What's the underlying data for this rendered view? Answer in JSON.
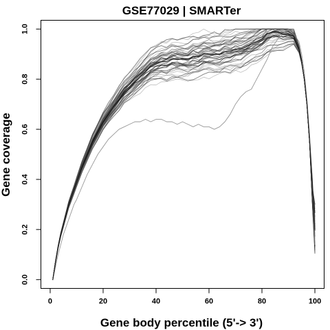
{
  "chart_data": {
    "type": "line",
    "title": "GSE77029 | SMARTer",
    "xlabel": "Gene body percentile (5'-> 3')",
    "ylabel": "Gene coverage",
    "xlim": [
      -3.5,
      103.5
    ],
    "ylim": [
      -0.035,
      1.035
    ],
    "xticks": [
      0,
      20,
      40,
      60,
      80,
      100
    ],
    "yticks": [
      0.0,
      0.2,
      0.4,
      0.6,
      0.8,
      1.0
    ],
    "xtick_labels": [
      "0",
      "20",
      "40",
      "60",
      "80",
      "100"
    ],
    "ytick_labels": [
      "0.0",
      "0.2",
      "0.4",
      "0.6",
      "0.8",
      "1.0"
    ],
    "grid": false,
    "legend": "none",
    "series_count": 50,
    "x": [
      1,
      2,
      3,
      4,
      5,
      6,
      7,
      8,
      9,
      10,
      12,
      14,
      16,
      18,
      20,
      22,
      24,
      26,
      28,
      30,
      32,
      34,
      36,
      38,
      40,
      42,
      44,
      46,
      48,
      50,
      52,
      54,
      56,
      58,
      60,
      62,
      64,
      66,
      68,
      70,
      72,
      74,
      76,
      78,
      80,
      82,
      84,
      86,
      88,
      90,
      92,
      94,
      95,
      96,
      97,
      98,
      99,
      100
    ],
    "representative_series": {
      "median": [
        0.0,
        0.07,
        0.13,
        0.18,
        0.22,
        0.26,
        0.3,
        0.33,
        0.36,
        0.39,
        0.45,
        0.5,
        0.55,
        0.59,
        0.63,
        0.66,
        0.69,
        0.72,
        0.75,
        0.77,
        0.79,
        0.81,
        0.83,
        0.85,
        0.86,
        0.87,
        0.87,
        0.88,
        0.88,
        0.88,
        0.88,
        0.89,
        0.89,
        0.9,
        0.9,
        0.9,
        0.9,
        0.91,
        0.91,
        0.92,
        0.92,
        0.93,
        0.94,
        0.95,
        0.96,
        0.98,
        0.99,
        0.99,
        0.98,
        0.98,
        0.97,
        0.92,
        0.87,
        0.8,
        0.7,
        0.55,
        0.4,
        0.2
      ],
      "outlier": [
        0.0,
        0.05,
        0.1,
        0.14,
        0.18,
        0.21,
        0.24,
        0.27,
        0.3,
        0.32,
        0.37,
        0.42,
        0.46,
        0.5,
        0.53,
        0.56,
        0.58,
        0.6,
        0.61,
        0.62,
        0.63,
        0.63,
        0.64,
        0.63,
        0.64,
        0.64,
        0.63,
        0.63,
        0.62,
        0.63,
        0.62,
        0.61,
        0.62,
        0.61,
        0.61,
        0.6,
        0.61,
        0.63,
        0.66,
        0.7,
        0.73,
        0.75,
        0.76,
        0.8,
        0.84,
        0.88,
        0.93,
        0.96,
        0.98,
        1.0,
        0.98,
        0.95,
        0.9,
        0.83,
        0.72,
        0.58,
        0.4,
        0.14
      ]
    },
    "colors": {
      "median": "#1a1a1a",
      "thin": "#5a5a5a",
      "outlier": "#8c8c8c",
      "axis": "#000000"
    }
  }
}
